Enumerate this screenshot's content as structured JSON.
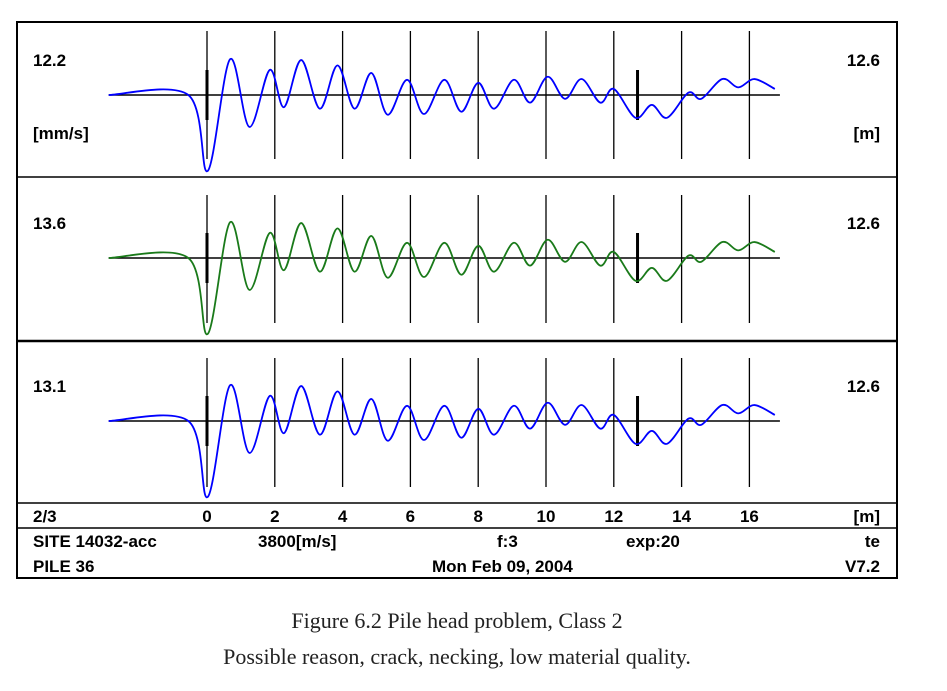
{
  "chart_data": {
    "type": "line",
    "x_unit": "[m]",
    "xlim": [
      -2.9,
      16.9
    ],
    "x_ticks": [
      "0",
      "2",
      "4",
      "6",
      "8",
      "10",
      "12",
      "14",
      "16"
    ],
    "x_tick_values": [
      0,
      2,
      4,
      6,
      8,
      10,
      12,
      14,
      16
    ],
    "grid": "vertical lines every 2 m",
    "markers_m": [
      0,
      12.7
    ],
    "panels": [
      {
        "left_value": "13.6",
        "left_unit": "",
        "right_value": "12.6",
        "right_unit": "",
        "color": "#1a7a1a"
      }
    ],
    "top_panel": {
      "left_value": "12.2",
      "left_unit": "[mm/s]",
      "right_value": "12.6",
      "right_unit": "[m]",
      "color": "#0000ff"
    },
    "bottom_panel": {
      "left_value": "13.1",
      "right_value": "12.6",
      "color": "#0000ff"
    },
    "signal_note_units": "relative amplitude",
    "signal": [
      [
        -2.9,
        0
      ],
      [
        -0.55,
        0
      ],
      [
        0.02,
        -1.0
      ],
      [
        0.68,
        0.47
      ],
      [
        1.25,
        -0.42
      ],
      [
        1.85,
        0.33
      ],
      [
        2.27,
        -0.16
      ],
      [
        2.78,
        0.46
      ],
      [
        3.33,
        -0.18
      ],
      [
        3.85,
        0.39
      ],
      [
        4.35,
        -0.18
      ],
      [
        4.85,
        0.29
      ],
      [
        5.33,
        -0.26
      ],
      [
        5.9,
        0.2
      ],
      [
        6.4,
        -0.25
      ],
      [
        7.0,
        0.2
      ],
      [
        7.5,
        -0.22
      ],
      [
        8.0,
        0.16
      ],
      [
        8.47,
        -0.18
      ],
      [
        9.05,
        0.2
      ],
      [
        9.53,
        -0.1
      ],
      [
        10.05,
        0.24
      ],
      [
        10.56,
        -0.05
      ],
      [
        11.05,
        0.21
      ],
      [
        11.6,
        -0.1
      ],
      [
        12.0,
        0.08
      ],
      [
        12.64,
        -0.3
      ],
      [
        13.12,
        -0.13
      ],
      [
        13.57,
        -0.3
      ],
      [
        14.2,
        0.03
      ],
      [
        14.58,
        -0.05
      ],
      [
        15.2,
        0.21
      ],
      [
        15.67,
        0.1
      ],
      [
        16.15,
        0.21
      ],
      [
        16.75,
        0.08
      ]
    ]
  },
  "footer": {
    "page": "2/3",
    "axis_unit": "[m]",
    "site": "SITE 14032-acc",
    "velocity": "3800[m/s]",
    "filter": "f:3",
    "exp": "exp:20",
    "mode": "te",
    "pile": "PILE 36",
    "date": "Mon Feb 09, 2004",
    "version": "V7.2"
  },
  "caption": {
    "line1": "Figure 6.2 Pile head problem, Class 2",
    "line2": "Possible reason, crack, necking, low material quality."
  }
}
